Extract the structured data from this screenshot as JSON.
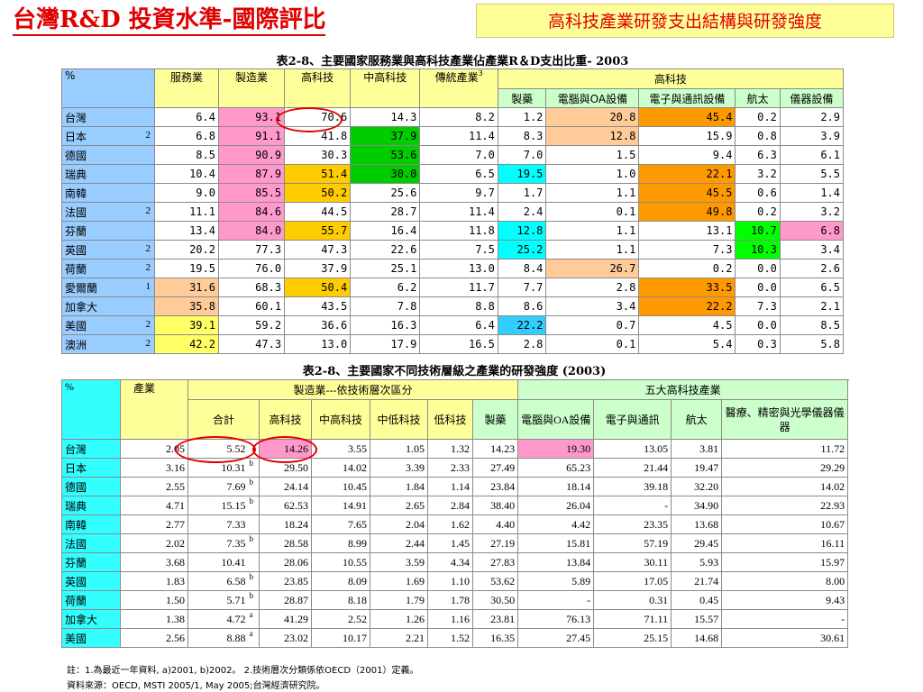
{
  "title": "台灣R&D 投資水準-國際評比",
  "subtitle": "高科技產業研發支出結構與研發強度",
  "table1": {
    "caption": "表2-8、主要國家服務業與高科技產業佔產業R＆D支出比重- 2003",
    "h_pct": "%",
    "h_service": "服務業",
    "h_mfg": "製造業",
    "h_hightech": "高科技",
    "h_midhigh": "中高科技",
    "h_trad": "傳統產業",
    "h_trad_sup": "3",
    "h_group": "高科技",
    "sub": [
      "製藥",
      "電腦與OA設備",
      "電子與通訊設備",
      "航太",
      "儀器設備"
    ],
    "rows": [
      {
        "name": "台灣",
        "note": "",
        "v": [
          "6.4",
          "93.1",
          "70.6",
          "14.3",
          "8.2",
          "1.2",
          "20.8",
          "45.4",
          "0.2",
          "2.9"
        ]
      },
      {
        "name": "日本",
        "note": "2",
        "v": [
          "6.8",
          "91.1",
          "41.8",
          "37.9",
          "11.4",
          "8.3",
          "12.8",
          "15.9",
          "0.8",
          "3.9"
        ]
      },
      {
        "name": "德國",
        "note": "",
        "v": [
          "8.5",
          "90.9",
          "30.3",
          "53.6",
          "7.0",
          "7.0",
          "1.5",
          "9.4",
          "6.3",
          "6.1"
        ]
      },
      {
        "name": "瑞典",
        "note": "",
        "v": [
          "10.4",
          "87.9",
          "51.4",
          "30.0",
          "6.5",
          "19.5",
          "1.0",
          "22.1",
          "3.2",
          "5.5"
        ]
      },
      {
        "name": "南韓",
        "note": "",
        "v": [
          "9.0",
          "85.5",
          "50.2",
          "25.6",
          "9.7",
          "1.7",
          "1.1",
          "45.5",
          "0.6",
          "1.4"
        ]
      },
      {
        "name": "法國",
        "note": "2",
        "v": [
          "11.1",
          "84.6",
          "44.5",
          "28.7",
          "11.4",
          "2.4",
          "0.1",
          "49.8",
          "0.2",
          "3.2"
        ]
      },
      {
        "name": "芬蘭",
        "note": "",
        "v": [
          "13.4",
          "84.0",
          "55.7",
          "16.4",
          "11.8",
          "12.8",
          "1.1",
          "13.1",
          "10.7",
          "6.8"
        ]
      },
      {
        "name": "英國",
        "note": "2",
        "v": [
          "20.2",
          "77.3",
          "47.3",
          "22.6",
          "7.5",
          "25.2",
          "1.1",
          "7.3",
          "10.3",
          "3.4"
        ]
      },
      {
        "name": "荷蘭",
        "note": "2",
        "v": [
          "19.5",
          "76.0",
          "37.9",
          "25.1",
          "13.0",
          "8.4",
          "26.7",
          "0.2",
          "0.0",
          "2.6"
        ]
      },
      {
        "name": "愛爾蘭",
        "note": "1",
        "v": [
          "31.6",
          "68.3",
          "50.4",
          "6.2",
          "11.7",
          "7.7",
          "2.8",
          "33.5",
          "0.0",
          "6.5"
        ]
      },
      {
        "name": "加拿大",
        "note": "",
        "v": [
          "35.8",
          "60.1",
          "43.5",
          "7.8",
          "8.8",
          "8.6",
          "3.4",
          "22.2",
          "7.3",
          "2.1"
        ]
      },
      {
        "name": "美國",
        "note": "2",
        "v": [
          "39.1",
          "59.2",
          "36.6",
          "16.3",
          "6.4",
          "22.2",
          "0.7",
          "4.5",
          "0.0",
          "8.5"
        ]
      },
      {
        "name": "澳洲",
        "note": "2",
        "v": [
          "42.2",
          "47.3",
          "13.0",
          "17.9",
          "16.5",
          "2.8",
          "0.1",
          "5.4",
          "0.3",
          "5.8"
        ]
      }
    ]
  },
  "table2": {
    "caption": "表2-8、主要國家不同技術層級之產業的研發強度 (2003)",
    "h_pct": "%",
    "h_industry": "產業",
    "h_mfg_group": "製造業---依技術層次區分",
    "h_top5_group": "五大高科技產業",
    "sub": [
      "合計",
      "高科技",
      "中高科技",
      "中低科技",
      "低科技",
      "製藥",
      "電腦與OA設備",
      "電子與通訊",
      "航太",
      "醫療、精密與光學儀器儀器"
    ],
    "rows": [
      {
        "name": "台灣",
        "ind": "2.05",
        "total": "5.52",
        "sup": "",
        "v": [
          "14.26",
          "3.55",
          "1.05",
          "1.32",
          "14.23",
          "19.30",
          "13.05",
          "3.81",
          "11.72"
        ]
      },
      {
        "name": "日本",
        "ind": "3.16",
        "total": "10.31",
        "sup": "b",
        "v": [
          "29.50",
          "14.02",
          "3.39",
          "2.33",
          "27.49",
          "65.23",
          "21.44",
          "19.47",
          "29.29"
        ]
      },
      {
        "name": "德國",
        "ind": "2.55",
        "total": "7.69",
        "sup": "b",
        "v": [
          "24.14",
          "10.45",
          "1.84",
          "1.14",
          "23.84",
          "18.14",
          "39.18",
          "32.20",
          "14.02"
        ]
      },
      {
        "name": "瑞典",
        "ind": "4.71",
        "total": "15.15",
        "sup": "b",
        "v": [
          "62.53",
          "14.91",
          "2.65",
          "2.84",
          "38.40",
          "26.04",
          "-",
          "34.90",
          "22.93"
        ]
      },
      {
        "name": "南韓",
        "ind": "2.77",
        "total": "7.33",
        "sup": "",
        "v": [
          "18.24",
          "7.65",
          "2.04",
          "1.62",
          "4.40",
          "4.42",
          "23.35",
          "13.68",
          "10.67"
        ]
      },
      {
        "name": "法國",
        "ind": "2.02",
        "total": "7.35",
        "sup": "b",
        "v": [
          "28.58",
          "8.99",
          "2.44",
          "1.45",
          "27.19",
          "15.81",
          "57.19",
          "29.45",
          "16.11"
        ]
      },
      {
        "name": "芬蘭",
        "ind": "3.68",
        "total": "10.41",
        "sup": "",
        "v": [
          "28.06",
          "10.55",
          "3.59",
          "4.34",
          "27.83",
          "13.84",
          "30.11",
          "5.93",
          "15.97"
        ]
      },
      {
        "name": "英國",
        "ind": "1.83",
        "total": "6.58",
        "sup": "b",
        "v": [
          "23.85",
          "8.09",
          "1.69",
          "1.10",
          "53.62",
          "5.89",
          "17.05",
          "21.74",
          "8.00"
        ]
      },
      {
        "name": "荷蘭",
        "ind": "1.50",
        "total": "5.71",
        "sup": "b",
        "v": [
          "28.87",
          "8.18",
          "1.79",
          "1.78",
          "30.50",
          "-",
          "0.31",
          "0.45",
          "9.43"
        ]
      },
      {
        "name": "加拿大",
        "ind": "1.38",
        "total": "4.72",
        "sup": "a",
        "v": [
          "41.29",
          "2.52",
          "1.26",
          "1.16",
          "23.81",
          "76.13",
          "71.11",
          "15.57",
          "-"
        ]
      },
      {
        "name": "美國",
        "ind": "2.56",
        "total": "8.88",
        "sup": "a",
        "v": [
          "23.02",
          "10.17",
          "2.21",
          "1.52",
          "16.35",
          "27.45",
          "25.15",
          "14.68",
          "30.61"
        ]
      }
    ]
  },
  "footnote1": "註：1.為最近一年資料, a)2001, b)2002。 2.技術層次分類係依OECD（2001）定義。",
  "footnote2": "資料來源：OECD, MSTI 2005/1, May 2005;台灣經濟研究院。",
  "highlights": {
    "t1": {
      "0-1": "#ff99cc",
      "0-2": "#ffffff",
      "0-6": "#ffcc99",
      "0-7": "#ff9900",
      "1-1": "#ff99cc",
      "1-3": "#00cc00",
      "1-6": "#ffcc99",
      "2-1": "#ff99cc",
      "2-3": "#00cc00",
      "3-1": "#ff99cc",
      "3-2": "#ffcc00",
      "3-3": "#00cc00",
      "3-5": "#00ffff",
      "3-7": "#ff9900",
      "4-1": "#ff99cc",
      "4-2": "#ffcc00",
      "4-7": "#ff9900",
      "5-1": "#ff99cc",
      "5-7": "#ff9900",
      "6-1": "#ff99cc",
      "6-2": "#ffcc00",
      "6-5": "#00ffff",
      "6-8": "#00ff00",
      "6-9": "#ff99cc",
      "7-5": "#00ffff",
      "7-8": "#00ff00",
      "8-6": "#ffcc99",
      "9-0": "#ffcc99",
      "9-2": "#ffcc00",
      "9-7": "#ff9900",
      "10-0": "#ffcc99",
      "10-7": "#ff9900",
      "11-0": "#ffff66",
      "11-5": "#33ccff",
      "12-0": "#ffff66"
    },
    "t2_pink": "#ff99cc",
    "circle_color": "#e00000"
  }
}
